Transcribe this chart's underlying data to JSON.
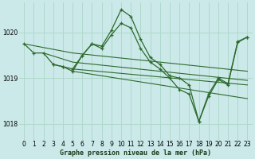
{
  "background_color": "#cbe9e9",
  "grid_color": "#b0d8cc",
  "line_color": "#2d6a2d",
  "ylim": [
    1017.65,
    1020.65
  ],
  "xlim": [
    -0.5,
    23.5
  ],
  "yticks": [
    1018,
    1019,
    1020
  ],
  "xticks": [
    0,
    1,
    2,
    3,
    4,
    5,
    6,
    7,
    8,
    9,
    10,
    11,
    12,
    13,
    14,
    15,
    16,
    17,
    18,
    19,
    20,
    21,
    22,
    23
  ],
  "xlabel": "Graphe pression niveau de la mer (hPa)",
  "lines": [
    {
      "x": [
        0,
        1,
        2,
        3,
        4,
        5,
        6,
        7,
        8,
        9,
        10,
        11,
        12,
        13,
        14,
        15,
        16,
        17,
        18,
        19,
        20,
        21,
        22,
        23
      ],
      "y": [
        1019.75,
        1019.55,
        1019.55,
        1019.3,
        1019.25,
        1019.2,
        1019.5,
        1019.75,
        1019.7,
        1020.05,
        1020.5,
        1020.35,
        1019.85,
        1019.45,
        1019.3,
        1019.05,
        1019.0,
        1018.85,
        1018.05,
        1018.65,
        1019.0,
        1018.88,
        1019.8,
        1019.9
      ],
      "has_markers": true
    },
    {
      "x": [
        0,
        5,
        23
      ],
      "y": [
        1019.75,
        1019.55,
        1019.15
      ],
      "has_markers": false
    },
    {
      "x": [
        2,
        5,
        23
      ],
      "y": [
        1019.55,
        1019.35,
        1018.95
      ],
      "has_markers": false
    },
    {
      "x": [
        5,
        23
      ],
      "y": [
        1019.2,
        1018.85
      ],
      "has_markers": false
    },
    {
      "x": [
        5,
        23
      ],
      "y": [
        1019.15,
        1018.55
      ],
      "has_markers": false
    },
    {
      "x": [
        3,
        4,
        5,
        6,
        7,
        8,
        9,
        10,
        11,
        12,
        13,
        14,
        15,
        16,
        17,
        18,
        19,
        20,
        21,
        22,
        23
      ],
      "y": [
        1019.3,
        1019.25,
        1019.15,
        1019.5,
        1019.75,
        1019.65,
        1019.95,
        1020.2,
        1020.1,
        1019.65,
        1019.35,
        1019.2,
        1019.0,
        1018.75,
        1018.65,
        1018.05,
        1018.6,
        1018.97,
        1018.85,
        1019.78,
        1019.9
      ],
      "has_markers": true
    }
  ]
}
